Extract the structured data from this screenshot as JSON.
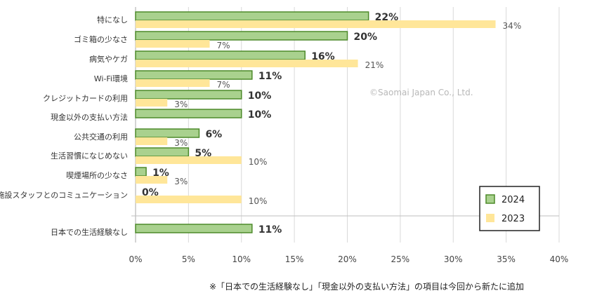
{
  "chart_data": {
    "type": "bar",
    "orientation": "horizontal",
    "categories": [
      "特になし",
      "ゴミ箱の少なさ",
      "病気やケガ",
      "Wi-Fi環境",
      "クレジットカードの利用",
      "現金以外の支払い方法",
      "公共交通の利用",
      "生活習慣になじめない",
      "喫煙場所の少なさ",
      "施設スタッフとのコミュニケーション",
      "日本での生活経験なし"
    ],
    "series": [
      {
        "name": "2024",
        "color": "#a9d18e",
        "border": "#4d8a2a",
        "values": [
          22,
          20,
          16,
          11,
          10,
          10,
          6,
          5,
          1,
          0,
          11
        ],
        "labels": [
          "22%",
          "20%",
          "16%",
          "11%",
          "10%",
          "10%",
          "6%",
          "5%",
          "1%",
          "0%",
          "11%"
        ]
      },
      {
        "name": "2023",
        "color": "#ffe699",
        "values": [
          34,
          7,
          21,
          7,
          3,
          null,
          3,
          10,
          3,
          10,
          null
        ],
        "labels": [
          "34%",
          "7%",
          "21%",
          "7%",
          "3%",
          "",
          "3%",
          "10%",
          "3%",
          "10%",
          ""
        ]
      }
    ],
    "xlim": [
      0,
      40
    ],
    "xticks": [
      "0%",
      "5%",
      "10%",
      "15%",
      "20%",
      "25%",
      "30%",
      "35%",
      "40%"
    ],
    "grid": true,
    "legend_position": "bottom-right"
  },
  "watermark": "©Saomai Japan Co., Ltd.",
  "footnote": "※「日本での生活経験なし」「現金以外の支払い方法」の項目は今回から新たに追加"
}
